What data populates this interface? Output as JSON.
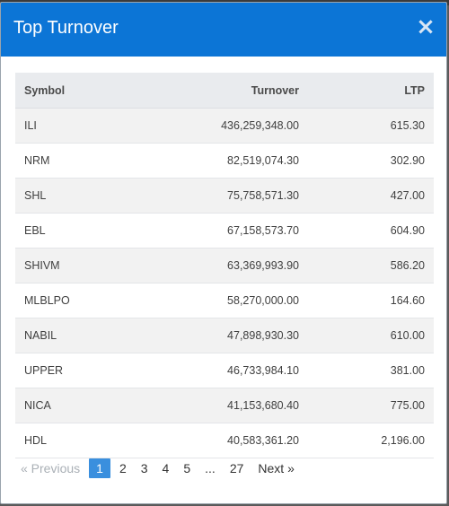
{
  "modal": {
    "title": "Top Turnover",
    "close_glyph": "×"
  },
  "table": {
    "headers": [
      "Symbol",
      "Turnover",
      "LTP"
    ],
    "rows": [
      {
        "symbol": "ILI",
        "turnover": "436,259,348.00",
        "ltp": "615.30"
      },
      {
        "symbol": "NRM",
        "turnover": "82,519,074.30",
        "ltp": "302.90"
      },
      {
        "symbol": "SHL",
        "turnover": "75,758,571.30",
        "ltp": "427.00"
      },
      {
        "symbol": "EBL",
        "turnover": "67,158,573.70",
        "ltp": "604.90"
      },
      {
        "symbol": "SHIVM",
        "turnover": "63,369,993.90",
        "ltp": "586.20"
      },
      {
        "symbol": "MLBLPO",
        "turnover": "58,270,000.00",
        "ltp": "164.60"
      },
      {
        "symbol": "NABIL",
        "turnover": "47,898,930.30",
        "ltp": "610.00"
      },
      {
        "symbol": "UPPER",
        "turnover": "46,733,984.10",
        "ltp": "381.00"
      },
      {
        "symbol": "NICA",
        "turnover": "41,153,680.40",
        "ltp": "775.00"
      },
      {
        "symbol": "HDL",
        "turnover": "40,583,361.20",
        "ltp": "2,196.00"
      }
    ]
  },
  "pagination": {
    "previous": "« Previous",
    "pages": [
      "1",
      "2",
      "3",
      "4",
      "5"
    ],
    "active_page": "1",
    "ellipsis": "...",
    "last_page": "27",
    "next": "Next »"
  },
  "colors": {
    "header_bg": "#0c75d6",
    "active_page_bg": "#3a8fde"
  }
}
